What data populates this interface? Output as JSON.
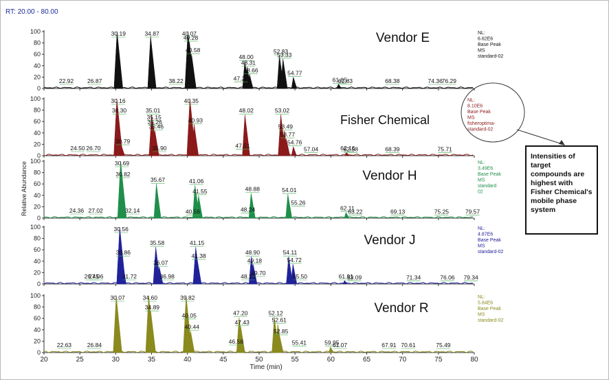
{
  "header": {
    "rt_label": "RT: 20.00 - 80.00"
  },
  "callout": {
    "text": "Intensities of target compounds are highest with Fisher Chemical's mobile phase system"
  },
  "chart_data": {
    "type": "line",
    "title": "",
    "xlabel": "Time (min)",
    "ylabel": "Relative Abundance",
    "xlim": [
      20,
      80
    ],
    "ylim": [
      0,
      100
    ],
    "xticks": [
      20,
      25,
      30,
      35,
      40,
      45,
      50,
      55,
      60,
      65,
      70,
      75,
      80
    ],
    "yticks": [
      0,
      20,
      40,
      60,
      80,
      100
    ],
    "panels": [
      {
        "name": "Vendor E",
        "color": "#111111",
        "info": [
          "NL:",
          "6.62E6",
          "Base Peak",
          "MS",
          "standard-02"
        ],
        "peaks": [
          [
            30.19,
            100
          ],
          [
            34.87,
            92
          ],
          [
            40.07,
            100
          ],
          [
            40.28,
            82
          ],
          [
            40.58,
            60
          ],
          [
            48.0,
            48
          ],
          [
            48.31,
            38
          ],
          [
            48.66,
            25
          ],
          [
            52.83,
            58
          ],
          [
            53.33,
            52
          ],
          [
            54.77,
            20
          ],
          [
            61.05,
            8
          ]
        ],
        "labels": [
          [
            22.92,
            6
          ],
          [
            26.87,
            6
          ],
          [
            30.19,
            100
          ],
          [
            34.87,
            92
          ],
          [
            38.22,
            6
          ],
          [
            40.07,
            100
          ],
          [
            40.28,
            82
          ],
          [
            40.58,
            60
          ],
          [
            47.25,
            10
          ],
          [
            48.0,
            48
          ],
          [
            48.31,
            38
          ],
          [
            48.66,
            25
          ],
          [
            52.83,
            58
          ],
          [
            53.33,
            52
          ],
          [
            54.77,
            20
          ],
          [
            61.05,
            8
          ],
          [
            61.83,
            6
          ],
          [
            68.38,
            6
          ],
          [
            74.36,
            6
          ],
          [
            76.29,
            6
          ]
        ]
      },
      {
        "name": "Fisher Chemical",
        "color": "#8b1a1a",
        "info": [
          "NL:",
          "8.10E6",
          "Base Peak",
          "MS",
          "fisheroptima-",
          "standard-02"
        ],
        "peaks": [
          [
            30.16,
            100
          ],
          [
            30.3,
            72
          ],
          [
            30.79,
            18
          ],
          [
            35.01,
            72
          ],
          [
            35.15,
            60
          ],
          [
            35.26,
            52
          ],
          [
            35.46,
            44
          ],
          [
            40.35,
            100
          ],
          [
            40.93,
            55
          ],
          [
            48.02,
            72
          ],
          [
            53.02,
            72
          ],
          [
            53.49,
            44
          ],
          [
            53.77,
            30
          ],
          [
            54.76,
            16
          ],
          [
            62.16,
            6
          ]
        ],
        "labels": [
          [
            24.5,
            6
          ],
          [
            26.7,
            6
          ],
          [
            30.16,
            100
          ],
          [
            30.3,
            72
          ],
          [
            30.79,
            18
          ],
          [
            35.01,
            72
          ],
          [
            35.15,
            60
          ],
          [
            35.26,
            52
          ],
          [
            35.46,
            44
          ],
          [
            35.9,
            6
          ],
          [
            40.35,
            100
          ],
          [
            40.93,
            55
          ],
          [
            47.51,
            10
          ],
          [
            48.02,
            72
          ],
          [
            53.02,
            72
          ],
          [
            53.49,
            44
          ],
          [
            53.77,
            30
          ],
          [
            54.76,
            16
          ],
          [
            57.04,
            4
          ],
          [
            62.16,
            6
          ],
          [
            62.58,
            4
          ],
          [
            68.39,
            4
          ],
          [
            75.71,
            4
          ]
        ]
      },
      {
        "name": "Vendor H",
        "color": "#1f8f4a",
        "info": [
          "NL:",
          "3.49E6",
          "Base Peak",
          "MS",
          "standard",
          "02"
        ],
        "peaks": [
          [
            30.69,
            100
          ],
          [
            30.82,
            70
          ],
          [
            35.67,
            60
          ],
          [
            41.06,
            58
          ],
          [
            41.55,
            40
          ],
          [
            48.88,
            44
          ],
          [
            54.01,
            42
          ],
          [
            62.11,
            10
          ]
        ],
        "labels": [
          [
            24.36,
            6
          ],
          [
            27.02,
            6
          ],
          [
            30.69,
            100
          ],
          [
            30.82,
            70
          ],
          [
            32.14,
            6
          ],
          [
            35.67,
            60
          ],
          [
            40.56,
            4
          ],
          [
            41.06,
            58
          ],
          [
            41.55,
            40
          ],
          [
            48.24,
            8
          ],
          [
            48.88,
            44
          ],
          [
            54.01,
            42
          ],
          [
            55.26,
            20
          ],
          [
            62.11,
            10
          ],
          [
            63.22,
            4
          ],
          [
            69.13,
            4
          ],
          [
            75.25,
            4
          ],
          [
            79.57,
            4
          ]
        ]
      },
      {
        "name": "Vendor J",
        "color": "#20229a",
        "info": [
          "NL:",
          "4.87E6",
          "Base Peak",
          "MS",
          "standard-02"
        ],
        "peaks": [
          [
            30.56,
            100
          ],
          [
            30.86,
            48
          ],
          [
            35.58,
            65
          ],
          [
            36.07,
            30
          ],
          [
            41.15,
            65
          ],
          [
            41.38,
            42
          ],
          [
            48.9,
            48
          ],
          [
            49.18,
            34
          ],
          [
            54.11,
            48
          ],
          [
            54.72,
            35
          ],
          [
            61.91,
            6
          ]
        ],
        "labels": [
          [
            26.45,
            6
          ],
          [
            27.06,
            6
          ],
          [
            30.56,
            100
          ],
          [
            30.86,
            48
          ],
          [
            31.72,
            6
          ],
          [
            35.58,
            65
          ],
          [
            36.07,
            30
          ],
          [
            36.98,
            6
          ],
          [
            41.15,
            65
          ],
          [
            41.38,
            42
          ],
          [
            48.26,
            6
          ],
          [
            48.9,
            48
          ],
          [
            49.18,
            34
          ],
          [
            49.7,
            12
          ],
          [
            54.11,
            48
          ],
          [
            54.72,
            35
          ],
          [
            55.5,
            6
          ],
          [
            61.91,
            6
          ],
          [
            63.09,
            4
          ],
          [
            71.34,
            4
          ],
          [
            76.06,
            4
          ],
          [
            79.34,
            4
          ]
        ]
      },
      {
        "name": "Vendor R",
        "color": "#8a8a1e",
        "info": [
          "NL:",
          "5.84E6",
          "Base Peak",
          "MS",
          "standard-02"
        ],
        "peaks": [
          [
            30.07,
            100
          ],
          [
            34.6,
            100
          ],
          [
            34.89,
            72
          ],
          [
            39.82,
            100
          ],
          [
            40.05,
            58
          ],
          [
            40.44,
            38
          ],
          [
            47.2,
            62
          ],
          [
            47.43,
            46
          ],
          [
            52.12,
            62
          ],
          [
            52.61,
            50
          ],
          [
            52.85,
            30
          ],
          [
            59.95,
            10
          ]
        ],
        "labels": [
          [
            22.63,
            6
          ],
          [
            26.84,
            6
          ],
          [
            30.07,
            100
          ],
          [
            34.6,
            100
          ],
          [
            34.89,
            72
          ],
          [
            39.82,
            100
          ],
          [
            40.05,
            58
          ],
          [
            40.44,
            38
          ],
          [
            46.58,
            12
          ],
          [
            47.2,
            62
          ],
          [
            47.43,
            46
          ],
          [
            52.12,
            62
          ],
          [
            52.61,
            50
          ],
          [
            52.85,
            30
          ],
          [
            55.41,
            10
          ],
          [
            59.95,
            10
          ],
          [
            61.07,
            6
          ],
          [
            67.91,
            6
          ],
          [
            70.61,
            6
          ],
          [
            75.49,
            6
          ]
        ]
      }
    ]
  }
}
